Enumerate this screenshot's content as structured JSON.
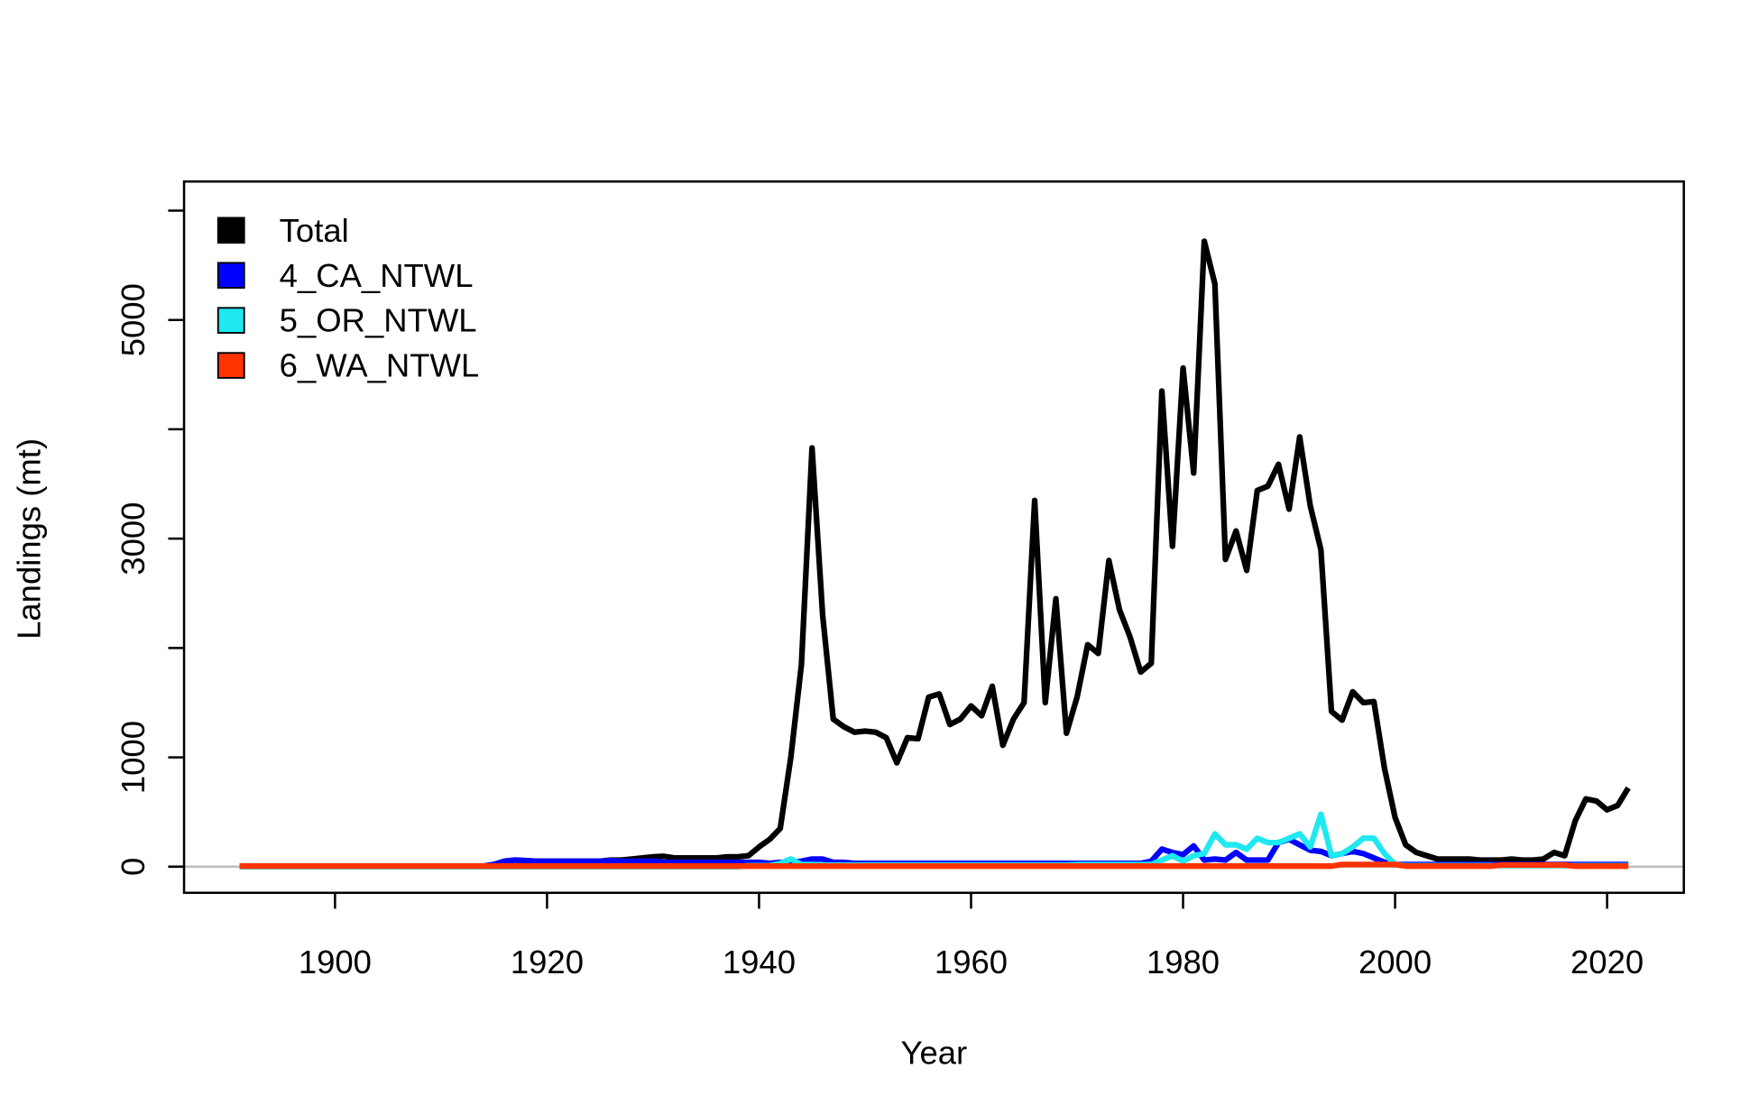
{
  "chart_data": {
    "type": "line",
    "xlabel": "Year",
    "ylabel": "Landings (mt)",
    "x": [
      1891,
      1892,
      1893,
      1894,
      1895,
      1896,
      1897,
      1898,
      1899,
      1900,
      1901,
      1902,
      1903,
      1904,
      1905,
      1906,
      1907,
      1908,
      1909,
      1910,
      1911,
      1912,
      1913,
      1914,
      1915,
      1916,
      1917,
      1918,
      1919,
      1920,
      1921,
      1922,
      1923,
      1924,
      1925,
      1926,
      1927,
      1928,
      1929,
      1930,
      1931,
      1932,
      1933,
      1934,
      1935,
      1936,
      1937,
      1938,
      1939,
      1940,
      1941,
      1942,
      1943,
      1944,
      1945,
      1946,
      1947,
      1948,
      1949,
      1950,
      1951,
      1952,
      1953,
      1954,
      1955,
      1956,
      1957,
      1958,
      1959,
      1960,
      1961,
      1962,
      1963,
      1964,
      1965,
      1966,
      1967,
      1968,
      1969,
      1970,
      1971,
      1972,
      1973,
      1974,
      1975,
      1976,
      1977,
      1978,
      1979,
      1980,
      1981,
      1982,
      1983,
      1984,
      1985,
      1986,
      1987,
      1988,
      1989,
      1990,
      1991,
      1992,
      1993,
      1994,
      1995,
      1996,
      1997,
      1998,
      1999,
      2000,
      2001,
      2002,
      2003,
      2004,
      2005,
      2006,
      2007,
      2008,
      2009,
      2010,
      2011,
      2012,
      2013,
      2014,
      2015,
      2016,
      2017,
      2018,
      2019,
      2020,
      2021,
      2022
    ],
    "series": [
      {
        "name": "Total",
        "color": "#000000",
        "values": [
          5,
          5,
          5,
          5,
          5,
          5,
          5,
          5,
          5,
          5,
          5,
          5,
          5,
          5,
          5,
          5,
          5,
          5,
          5,
          5,
          5,
          5,
          5,
          5,
          20,
          50,
          60,
          55,
          50,
          50,
          50,
          50,
          50,
          50,
          50,
          60,
          60,
          70,
          80,
          90,
          95,
          80,
          80,
          80,
          80,
          80,
          90,
          90,
          100,
          180,
          250,
          350,
          1000,
          1850,
          3830,
          2300,
          1350,
          1280,
          1230,
          1240,
          1230,
          1180,
          950,
          1180,
          1170,
          1550,
          1580,
          1300,
          1350,
          1470,
          1380,
          1650,
          1110,
          1350,
          1500,
          3350,
          1500,
          2450,
          1220,
          1550,
          2030,
          1950,
          2800,
          2350,
          2100,
          1780,
          1860,
          4350,
          2930,
          4560,
          3600,
          5720,
          5330,
          2810,
          3070,
          2710,
          3440,
          3480,
          3680,
          3270,
          3930,
          3300,
          2900,
          1420,
          1340,
          1600,
          1500,
          1510,
          900,
          450,
          200,
          130,
          100,
          70,
          70,
          70,
          70,
          60,
          60,
          60,
          70,
          60,
          60,
          70,
          130,
          100,
          420,
          620,
          600,
          520,
          560,
          720
        ]
      },
      {
        "name": "4_CA_NTWL",
        "color": "#0000ff",
        "values": [
          5,
          5,
          5,
          5,
          5,
          5,
          5,
          5,
          5,
          5,
          5,
          5,
          5,
          5,
          5,
          5,
          5,
          5,
          5,
          5,
          5,
          5,
          5,
          5,
          20,
          50,
          60,
          55,
          50,
          50,
          50,
          50,
          50,
          50,
          50,
          55,
          50,
          50,
          50,
          50,
          40,
          40,
          40,
          40,
          40,
          40,
          40,
          40,
          40,
          40,
          30,
          40,
          40,
          50,
          70,
          70,
          40,
          40,
          30,
          30,
          30,
          30,
          30,
          30,
          30,
          30,
          30,
          30,
          30,
          30,
          30,
          30,
          30,
          30,
          30,
          30,
          30,
          30,
          30,
          30,
          30,
          30,
          30,
          30,
          30,
          30,
          50,
          160,
          130,
          110,
          190,
          60,
          70,
          60,
          130,
          60,
          60,
          60,
          220,
          250,
          200,
          150,
          140,
          100,
          120,
          140,
          120,
          80,
          40,
          20,
          20,
          20,
          20,
          20,
          20,
          20,
          20,
          20,
          20,
          20,
          20,
          20,
          20,
          20,
          20,
          20,
          20,
          20,
          20,
          20,
          20,
          20
        ]
      },
      {
        "name": "5_OR_NTWL",
        "color": "#1ee8f0",
        "values": [
          0,
          0,
          0,
          0,
          0,
          0,
          0,
          0,
          0,
          0,
          0,
          0,
          0,
          0,
          0,
          0,
          0,
          0,
          0,
          0,
          0,
          0,
          0,
          0,
          0,
          0,
          0,
          0,
          0,
          0,
          0,
          0,
          0,
          0,
          0,
          0,
          0,
          0,
          0,
          0,
          0,
          0,
          0,
          0,
          0,
          0,
          0,
          0,
          10,
          10,
          10,
          30,
          70,
          20,
          20,
          15,
          15,
          15,
          15,
          15,
          15,
          15,
          15,
          15,
          15,
          15,
          15,
          15,
          15,
          15,
          15,
          15,
          15,
          15,
          15,
          15,
          15,
          15,
          15,
          20,
          20,
          20,
          20,
          20,
          20,
          20,
          20,
          60,
          100,
          50,
          100,
          120,
          300,
          200,
          200,
          160,
          260,
          220,
          220,
          260,
          300,
          180,
          480,
          100,
          120,
          180,
          260,
          260,
          120,
          20,
          10,
          10,
          10,
          10,
          10,
          10,
          10,
          10,
          10,
          10,
          10,
          10,
          10,
          10,
          10,
          10,
          10,
          10,
          10,
          10,
          10,
          10
        ]
      },
      {
        "name": "6_WA_NTWL",
        "color": "#ff3300",
        "values": [
          5,
          5,
          5,
          5,
          5,
          5,
          5,
          5,
          5,
          5,
          5,
          5,
          5,
          5,
          5,
          5,
          5,
          5,
          5,
          5,
          5,
          5,
          5,
          5,
          5,
          5,
          5,
          5,
          5,
          5,
          5,
          5,
          5,
          5,
          5,
          5,
          5,
          5,
          5,
          5,
          5,
          5,
          5,
          5,
          5,
          5,
          5,
          5,
          5,
          5,
          5,
          5,
          5,
          5,
          5,
          5,
          5,
          5,
          5,
          5,
          5,
          5,
          5,
          5,
          5,
          5,
          5,
          5,
          5,
          5,
          5,
          5,
          5,
          5,
          5,
          5,
          5,
          5,
          5,
          5,
          5,
          5,
          5,
          5,
          5,
          5,
          5,
          5,
          5,
          5,
          5,
          5,
          5,
          5,
          5,
          5,
          5,
          5,
          5,
          5,
          5,
          5,
          5,
          5,
          20,
          20,
          20,
          20,
          20,
          20,
          5,
          5,
          5,
          5,
          5,
          5,
          5,
          5,
          5,
          15,
          15,
          15,
          15,
          15,
          15,
          15,
          5,
          5,
          5,
          5,
          5,
          5
        ]
      }
    ],
    "xlim": [
      1885.76,
      2027.24
    ],
    "xticks": [
      1900,
      1920,
      1940,
      1960,
      1980,
      2000,
      2020
    ],
    "ylim": [
      -239,
      6266
    ],
    "yticks": [
      0,
      1000,
      {
        "value": 2000,
        "label": null
      },
      3000,
      {
        "value": 4000,
        "label": null
      },
      5000,
      {
        "value": 6000,
        "label": null
      }
    ],
    "zero_line": true,
    "legend": "topleft"
  }
}
